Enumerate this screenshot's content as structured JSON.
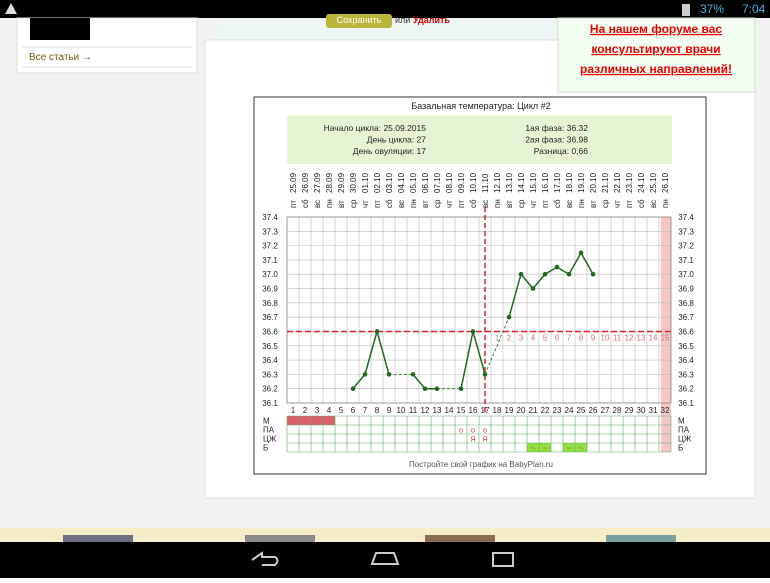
{
  "status_bar": {
    "battery": "37%",
    "time": "7:04"
  },
  "sidebar": {
    "link": "Все статьи →"
  },
  "form": {
    "save": "Сохранить",
    "or": "или",
    "delete": "Удалить"
  },
  "ad": {
    "lines": [
      "На нашем форуме вас",
      "консультируют врачи",
      "различных направлений!"
    ]
  },
  "chart_data": {
    "type": "line",
    "title": "Базальная температура: Цикл #2",
    "info_left": [
      "Начало цикла: 25.09.2015",
      "День цикла: 27",
      "День овуляции: 17"
    ],
    "info_right": [
      "1ая фаза: 36.32",
      "2ая фаза: 36.98",
      "Разница: 0,66"
    ],
    "categories": [
      1,
      2,
      3,
      4,
      5,
      6,
      7,
      8,
      9,
      10,
      11,
      12,
      13,
      14,
      15,
      16,
      17,
      18,
      19,
      20,
      21,
      22,
      23,
      24,
      25,
      26,
      27,
      28,
      29,
      30,
      31,
      32
    ],
    "dates": [
      "25.09",
      "26.09",
      "27.09",
      "28.09",
      "29.09",
      "30.09",
      "01.10",
      "02.10",
      "03.10",
      "04.10",
      "05.10",
      "06.10",
      "07.10",
      "08.10",
      "09.10",
      "10.10",
      "11.10",
      "12.10",
      "13.10",
      "14.10",
      "15.10",
      "16.10",
      "17.10",
      "18.10",
      "19.10",
      "20.10",
      "21.10",
      "22.10",
      "23.10",
      "24.10",
      "25.10",
      "26.10"
    ],
    "weekdays": [
      "пт",
      "сб",
      "вс",
      "пн",
      "вт",
      "ср",
      "чт",
      "пт",
      "сб",
      "вс",
      "пн",
      "вт",
      "ср",
      "чт",
      "пт",
      "сб",
      "вс",
      "пн",
      "вт",
      "ср",
      "чт",
      "пт",
      "сб",
      "вс",
      "пн",
      "вт",
      "ср",
      "чт",
      "пт",
      "сб",
      "вс",
      "пн"
    ],
    "values": [
      null,
      null,
      null,
      null,
      null,
      36.2,
      36.3,
      36.6,
      36.3,
      null,
      36.3,
      36.2,
      36.2,
      null,
      36.2,
      36.6,
      36.3,
      null,
      36.7,
      37.0,
      36.9,
      37.0,
      37.05,
      37.0,
      37.15,
      37.0,
      null,
      null,
      null,
      null,
      null,
      null
    ],
    "color": "#1f6a1f",
    "ylim": [
      36.1,
      37.4
    ],
    "yticks": [
      36.1,
      36.2,
      36.3,
      36.4,
      36.5,
      36.6,
      36.7,
      36.8,
      36.9,
      {
        "value": 37,
        "label": "37.0"
      },
      37.1,
      37.2,
      37.3,
      37.4
    ],
    "grid": true,
    "cover_line": 36.6,
    "ovulation_day": 17,
    "phase_labels": [
      1,
      2,
      3,
      4,
      5,
      6,
      7,
      8,
      9,
      10,
      11,
      12,
      13,
      14,
      15
    ],
    "rows": [
      {
        "label": "М",
        "fill_days": [
          1,
          2,
          3,
          4
        ],
        "fill": "#d9606a"
      },
      {
        "label": "ПА",
        "marks": {
          "15": "о",
          "16": "о",
          "17": "о"
        }
      },
      {
        "label": "ЦЖ",
        "marks": {
          "16": "Я",
          "17": "Я"
        }
      },
      {
        "label": "Б",
        "fill_days": [
          21,
          22,
          24,
          25
        ],
        "fill": "#8fe040",
        "marks": {
          "21": "~",
          "22": "~",
          "24": "~",
          "25": "~"
        }
      }
    ],
    "footer": "Постройте свой график на BabyPlan.ru"
  }
}
